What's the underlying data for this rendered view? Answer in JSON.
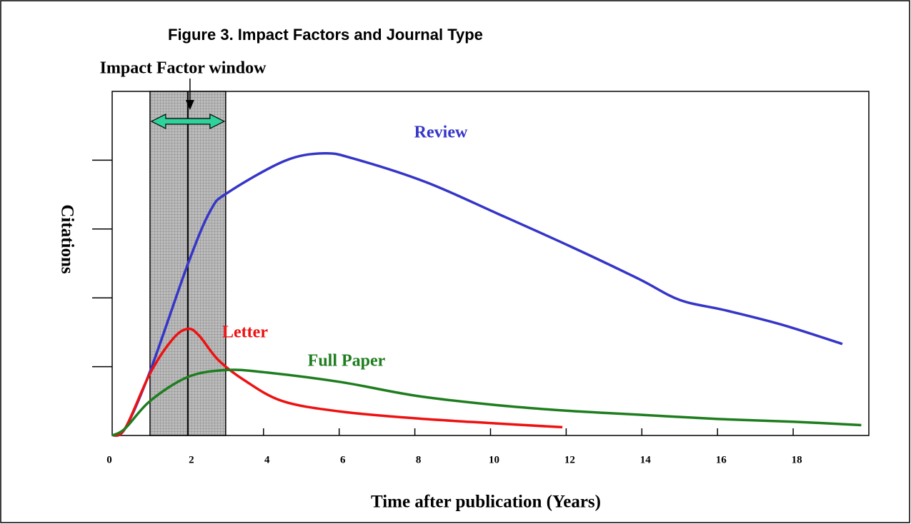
{
  "chart_data": {
    "type": "line",
    "title": "Figure 3. Impact Factors and Journal Type",
    "x_label": "Time after publication (Years)",
    "y_label": "Citations",
    "xlim": [
      0,
      20
    ],
    "xticks": [
      0,
      2,
      4,
      6,
      8,
      10,
      12,
      14,
      16,
      18
    ],
    "ylim": [
      0,
      5
    ],
    "yticks": [
      1,
      2,
      3,
      4
    ],
    "window": {
      "label": "Impact Factor window",
      "xlim": [
        1,
        3
      ],
      "center": 2
    },
    "series": [
      {
        "name": "Review",
        "color": "#3535c8",
        "x": [
          0,
          0.34,
          1,
          2,
          2.6,
          3.06,
          4.56,
          5.6,
          6.4,
          8.3,
          10.2,
          12.1,
          13.9,
          15,
          16.2,
          17.7,
          19.3
        ],
        "values": [
          0,
          0.1,
          0.93,
          2.49,
          3.27,
          3.53,
          3.99,
          4.1,
          4.02,
          3.68,
          3.22,
          2.75,
          2.28,
          1.97,
          1.82,
          1.61,
          1.33
        ]
      },
      {
        "name": "Letter",
        "color": "#ee1111",
        "x": [
          0,
          0.34,
          1,
          1.6,
          2,
          2.3,
          2.8,
          3.5,
          4.5,
          6,
          8,
          10,
          11.9
        ],
        "values": [
          0,
          0.1,
          0.9,
          1.4,
          1.55,
          1.45,
          1.1,
          0.8,
          0.5,
          0.35,
          0.25,
          0.18,
          0.12
        ]
      },
      {
        "name": "Full Paper",
        "color": "#1e7d1e",
        "x": [
          0,
          0.34,
          1,
          2,
          3,
          4,
          6,
          8,
          10,
          12,
          14,
          16,
          18,
          19.8
        ],
        "values": [
          0,
          0.1,
          0.5,
          0.85,
          0.95,
          0.92,
          0.78,
          0.58,
          0.45,
          0.36,
          0.3,
          0.24,
          0.2,
          0.15
        ]
      }
    ]
  }
}
